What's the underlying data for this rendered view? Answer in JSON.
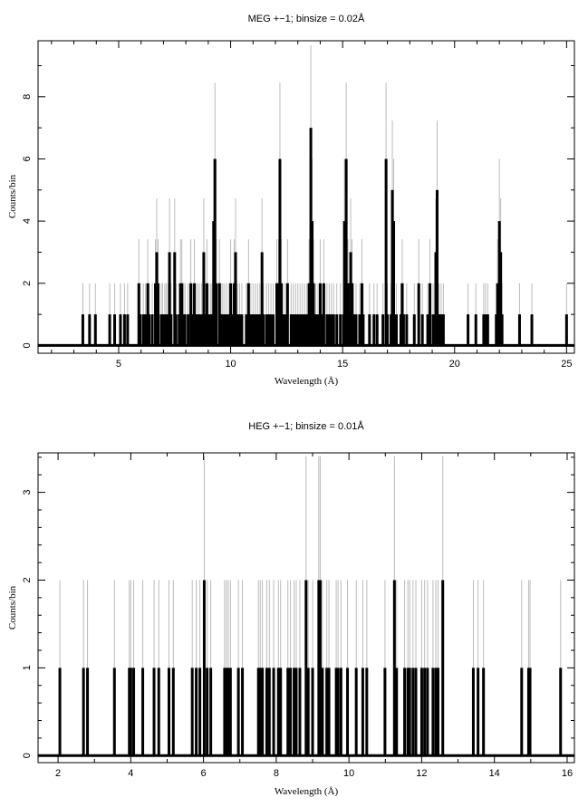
{
  "chart_data": [
    {
      "type": "bar",
      "title": "MEG +−1; binsize = 0.02Å",
      "xlabel": "Wavelength (Å)",
      "ylabel": "Counts/bin",
      "xlim": [
        1.4,
        25.35
      ],
      "ylim": [
        -0.25,
        9.8
      ],
      "xticks": [
        5,
        10,
        15,
        20,
        25
      ],
      "xminor_step": 1,
      "yticks": [
        0,
        2,
        4,
        6,
        8
      ],
      "yminor_step": 1,
      "binsize": 0.02,
      "grid": false,
      "series": [
        {
          "name": "counts",
          "color": "#000000",
          "bins": [
            [
              3.4,
              1
            ],
            [
              3.7,
              1
            ],
            [
              3.96,
              1
            ],
            [
              4.6,
              1
            ],
            [
              4.82,
              1
            ],
            [
              5.08,
              1
            ],
            [
              5.26,
              1
            ],
            [
              5.4,
              1
            ],
            [
              5.9,
              2
            ],
            [
              5.96,
              1
            ],
            [
              6.1,
              1
            ],
            [
              6.2,
              1
            ],
            [
              6.3,
              2
            ],
            [
              6.36,
              1
            ],
            [
              6.5,
              1
            ],
            [
              6.64,
              2
            ],
            [
              6.7,
              3
            ],
            [
              6.76,
              2
            ],
            [
              6.9,
              1
            ],
            [
              6.96,
              1
            ],
            [
              7.06,
              1
            ],
            [
              7.12,
              1
            ],
            [
              7.2,
              1
            ],
            [
              7.27,
              3
            ],
            [
              7.34,
              1
            ],
            [
              7.5,
              3
            ],
            [
              7.56,
              1
            ],
            [
              7.7,
              1
            ],
            [
              7.76,
              2
            ],
            [
              7.82,
              2
            ],
            [
              7.9,
              1
            ],
            [
              7.96,
              1
            ],
            [
              8.1,
              1
            ],
            [
              8.22,
              2
            ],
            [
              8.3,
              1
            ],
            [
              8.38,
              2
            ],
            [
              8.44,
              1
            ],
            [
              8.52,
              1
            ],
            [
              8.6,
              1
            ],
            [
              8.7,
              1
            ],
            [
              8.8,
              3
            ],
            [
              8.86,
              1
            ],
            [
              8.94,
              2
            ],
            [
              9.0,
              1
            ],
            [
              9.1,
              1
            ],
            [
              9.16,
              1
            ],
            [
              9.24,
              4
            ],
            [
              9.3,
              6
            ],
            [
              9.36,
              2
            ],
            [
              9.5,
              2
            ],
            [
              9.56,
              1
            ],
            [
              9.62,
              1
            ],
            [
              9.7,
              1
            ],
            [
              9.8,
              1
            ],
            [
              9.9,
              1
            ],
            [
              10.0,
              2
            ],
            [
              10.1,
              1
            ],
            [
              10.16,
              2
            ],
            [
              10.22,
              3
            ],
            [
              10.3,
              1
            ],
            [
              10.4,
              1
            ],
            [
              10.5,
              1
            ],
            [
              10.7,
              1
            ],
            [
              10.8,
              2
            ],
            [
              10.9,
              1
            ],
            [
              11.0,
              1
            ],
            [
              11.1,
              1
            ],
            [
              11.2,
              1
            ],
            [
              11.3,
              1
            ],
            [
              11.4,
              3
            ],
            [
              11.46,
              1
            ],
            [
              11.6,
              1
            ],
            [
              11.7,
              1
            ],
            [
              11.8,
              1
            ],
            [
              11.9,
              1
            ],
            [
              12.06,
              2
            ],
            [
              12.14,
              2
            ],
            [
              12.2,
              6
            ],
            [
              12.26,
              2
            ],
            [
              12.34,
              1
            ],
            [
              12.44,
              1
            ],
            [
              12.54,
              2
            ],
            [
              12.7,
              1
            ],
            [
              12.8,
              1
            ],
            [
              12.9,
              1
            ],
            [
              13.0,
              1
            ],
            [
              13.1,
              1
            ],
            [
              13.2,
              1
            ],
            [
              13.3,
              1
            ],
            [
              13.4,
              1
            ],
            [
              13.5,
              2
            ],
            [
              13.58,
              7
            ],
            [
              13.64,
              4
            ],
            [
              13.7,
              2
            ],
            [
              13.8,
              1
            ],
            [
              13.9,
              1
            ],
            [
              14.0,
              2
            ],
            [
              14.06,
              1
            ],
            [
              14.16,
              2
            ],
            [
              14.3,
              1
            ],
            [
              14.4,
              1
            ],
            [
              14.5,
              1
            ],
            [
              14.6,
              1
            ],
            [
              14.74,
              1
            ],
            [
              14.9,
              1
            ],
            [
              15.04,
              1
            ],
            [
              15.08,
              4
            ],
            [
              15.16,
              6
            ],
            [
              15.24,
              2
            ],
            [
              15.3,
              1
            ],
            [
              15.36,
              3
            ],
            [
              15.42,
              2
            ],
            [
              15.5,
              1
            ],
            [
              15.6,
              1
            ],
            [
              15.76,
              1
            ],
            [
              15.86,
              2
            ],
            [
              15.92,
              1
            ],
            [
              16.2,
              1
            ],
            [
              16.4,
              1
            ],
            [
              16.54,
              1
            ],
            [
              16.8,
              1
            ],
            [
              16.94,
              6
            ],
            [
              17.0,
              1
            ],
            [
              17.16,
              1
            ],
            [
              17.22,
              5
            ],
            [
              17.28,
              4
            ],
            [
              17.4,
              1
            ],
            [
              17.6,
              1
            ],
            [
              17.66,
              2
            ],
            [
              17.72,
              1
            ],
            [
              17.86,
              1
            ],
            [
              18.2,
              1
            ],
            [
              18.4,
              2
            ],
            [
              18.56,
              1
            ],
            [
              18.8,
              1
            ],
            [
              18.9,
              2
            ],
            [
              19.04,
              1
            ],
            [
              19.16,
              3
            ],
            [
              19.22,
              5
            ],
            [
              19.3,
              1
            ],
            [
              19.4,
              1
            ],
            [
              19.5,
              1
            ],
            [
              20.6,
              1
            ],
            [
              20.95,
              1
            ],
            [
              21.3,
              1
            ],
            [
              21.38,
              1
            ],
            [
              21.48,
              1
            ],
            [
              21.86,
              1
            ],
            [
              21.92,
              2
            ],
            [
              22.0,
              4
            ],
            [
              22.06,
              3
            ],
            [
              22.12,
              1
            ],
            [
              22.9,
              1
            ],
            [
              23.45,
              1
            ],
            [
              25.0,
              1
            ]
          ]
        }
      ],
      "error_color": "#bbbbbb"
    },
    {
      "type": "bar",
      "title": "HEG +−1; binsize = 0.01Å",
      "xlabel": "Wavelength (Å)",
      "ylabel": "Counts/bin",
      "xlim": [
        1.45,
        16.2
      ],
      "ylim": [
        -0.08,
        3.45
      ],
      "xticks": [
        2,
        4,
        6,
        8,
        10,
        12,
        14,
        16
      ],
      "xminor_step": 1,
      "yticks": [
        0,
        1,
        2,
        3
      ],
      "yminor_step": 0.2,
      "binsize": 0.01,
      "grid": false,
      "series": [
        {
          "name": "counts",
          "color": "#000000",
          "bins": [
            [
              2.05,
              1
            ],
            [
              2.7,
              1
            ],
            [
              2.81,
              1
            ],
            [
              3.55,
              1
            ],
            [
              3.96,
              1
            ],
            [
              4.0,
              1
            ],
            [
              4.08,
              1
            ],
            [
              4.33,
              1
            ],
            [
              4.64,
              1
            ],
            [
              4.77,
              1
            ],
            [
              5.05,
              1
            ],
            [
              5.17,
              1
            ],
            [
              5.69,
              1
            ],
            [
              5.8,
              1
            ],
            [
              5.9,
              1
            ],
            [
              6.02,
              2
            ],
            [
              6.1,
              1
            ],
            [
              6.2,
              1
            ],
            [
              6.58,
              1
            ],
            [
              6.63,
              1
            ],
            [
              6.68,
              1
            ],
            [
              6.74,
              1
            ],
            [
              6.96,
              1
            ],
            [
              7.07,
              1
            ],
            [
              7.51,
              1
            ],
            [
              7.56,
              1
            ],
            [
              7.62,
              1
            ],
            [
              7.74,
              1
            ],
            [
              7.81,
              1
            ],
            [
              7.93,
              1
            ],
            [
              8.06,
              1
            ],
            [
              8.12,
              1
            ],
            [
              8.32,
              1
            ],
            [
              8.39,
              1
            ],
            [
              8.49,
              1
            ],
            [
              8.55,
              1
            ],
            [
              8.65,
              1
            ],
            [
              8.82,
              2
            ],
            [
              8.88,
              1
            ],
            [
              9.0,
              1
            ],
            [
              9.17,
              2
            ],
            [
              9.21,
              2
            ],
            [
              9.27,
              1
            ],
            [
              9.39,
              1
            ],
            [
              9.45,
              1
            ],
            [
              9.65,
              1
            ],
            [
              9.7,
              1
            ],
            [
              9.78,
              1
            ],
            [
              9.96,
              1
            ],
            [
              10.2,
              1
            ],
            [
              10.38,
              1
            ],
            [
              10.49,
              1
            ],
            [
              10.99,
              1
            ],
            [
              11.25,
              2
            ],
            [
              11.31,
              1
            ],
            [
              11.53,
              1
            ],
            [
              11.62,
              1
            ],
            [
              11.67,
              1
            ],
            [
              11.76,
              1
            ],
            [
              11.84,
              1
            ],
            [
              12.0,
              1
            ],
            [
              12.08,
              1
            ],
            [
              12.16,
              1
            ],
            [
              12.31,
              1
            ],
            [
              12.39,
              1
            ],
            [
              12.45,
              1
            ],
            [
              12.58,
              2
            ],
            [
              13.42,
              1
            ],
            [
              13.55,
              1
            ],
            [
              13.7,
              1
            ],
            [
              14.75,
              1
            ],
            [
              14.94,
              1
            ],
            [
              14.98,
              1
            ],
            [
              15.82,
              1
            ]
          ]
        }
      ],
      "error_color": "#bbbbbb"
    }
  ]
}
